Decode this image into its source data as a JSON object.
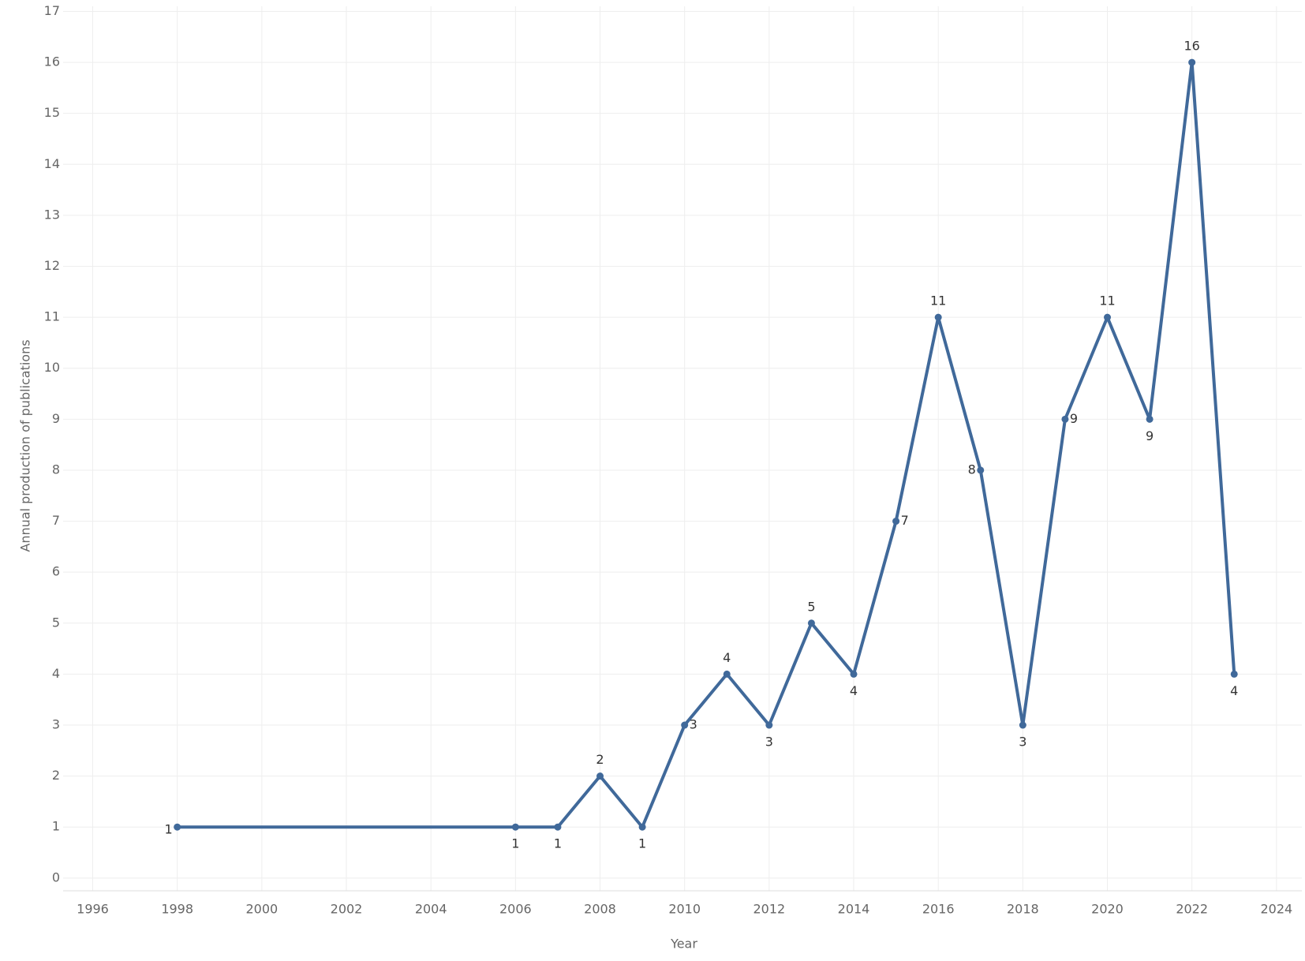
{
  "chart_data": {
    "type": "line",
    "x_label": "Year",
    "y_label": "Annual production of publications",
    "x": [
      1998,
      2006,
      2007,
      2008,
      2009,
      2010,
      2011,
      2012,
      2013,
      2014,
      2015,
      2016,
      2017,
      2018,
      2019,
      2020,
      2021,
      2022,
      2023
    ],
    "values": [
      1,
      1,
      1,
      2,
      1,
      3,
      4,
      3,
      5,
      4,
      7,
      11,
      8,
      3,
      9,
      11,
      9,
      16,
      4
    ],
    "color": "#40699a",
    "xlim": [
      1995.3,
      2024.6
    ],
    "xticks": [
      1996,
      1998,
      2000,
      2002,
      2004,
      2006,
      2008,
      2010,
      2012,
      2014,
      2016,
      2018,
      2020,
      2022,
      2024
    ],
    "ylim": [
      -0.25,
      17.1
    ],
    "yticks": [
      0,
      1,
      2,
      3,
      4,
      5,
      6,
      7,
      8,
      9,
      10,
      11,
      12,
      13,
      14,
      15,
      16,
      17
    ],
    "grid": true
  }
}
